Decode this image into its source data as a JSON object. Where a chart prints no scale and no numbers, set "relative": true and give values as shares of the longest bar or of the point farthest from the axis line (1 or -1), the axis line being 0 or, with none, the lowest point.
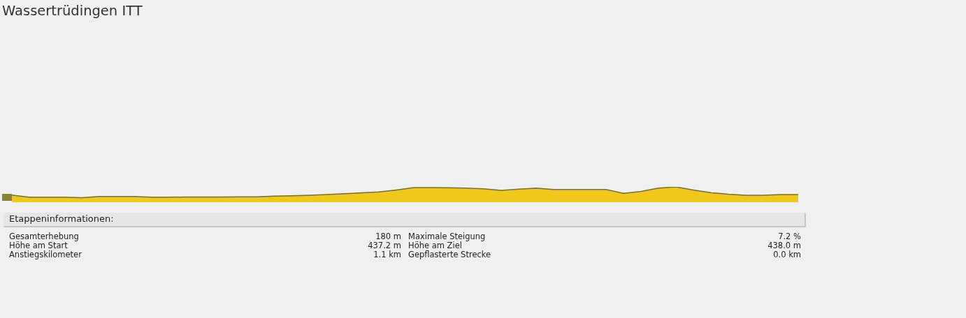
{
  "chart_data": [
    {
      "type": "area",
      "title": "Wassertrüdingen ITT",
      "relative": true,
      "color": "#f0c81a",
      "categories": [
        null,
        null,
        null,
        null,
        null,
        null,
        null,
        null,
        null,
        null,
        null,
        null,
        null,
        null,
        null,
        null,
        null,
        null,
        null,
        null,
        null,
        null,
        null,
        null,
        null,
        null,
        null,
        null,
        null,
        null,
        null,
        null,
        null,
        null,
        null,
        null,
        null,
        null,
        null,
        null,
        null,
        null,
        null,
        null,
        null,
        null
      ],
      "values": [
        0.47,
        0.33,
        0.33,
        0.33,
        0.3,
        0.38,
        0.38,
        0.38,
        0.33,
        0.33,
        0.34,
        0.34,
        0.34,
        0.35,
        0.35,
        0.4,
        0.42,
        0.45,
        0.5,
        0.56,
        0.61,
        0.67,
        0.8,
        0.95,
        0.95,
        0.94,
        0.92,
        0.88,
        0.77,
        0.85,
        0.92,
        0.83,
        0.83,
        0.83,
        0.83,
        0.58,
        0.7,
        0.92,
        1,
        0.8,
        0.62,
        0.52,
        0.46,
        0.45,
        0.5,
        0.5
      ]
    },
    {
      "type": "other",
      "title": "Etappeninformationen:",
      "annotations": [
        "Gesamterhebung",
        "180 m",
        "Maximale Steigung",
        "7.2 %",
        "Höhe am Start",
        "437.2 m",
        "Höhe am Ziel",
        "438.0 m",
        "Anstiegskilometer",
        "1.1 km",
        "Gepflasterte Strecke",
        "0.0 km"
      ]
    }
  ]
}
